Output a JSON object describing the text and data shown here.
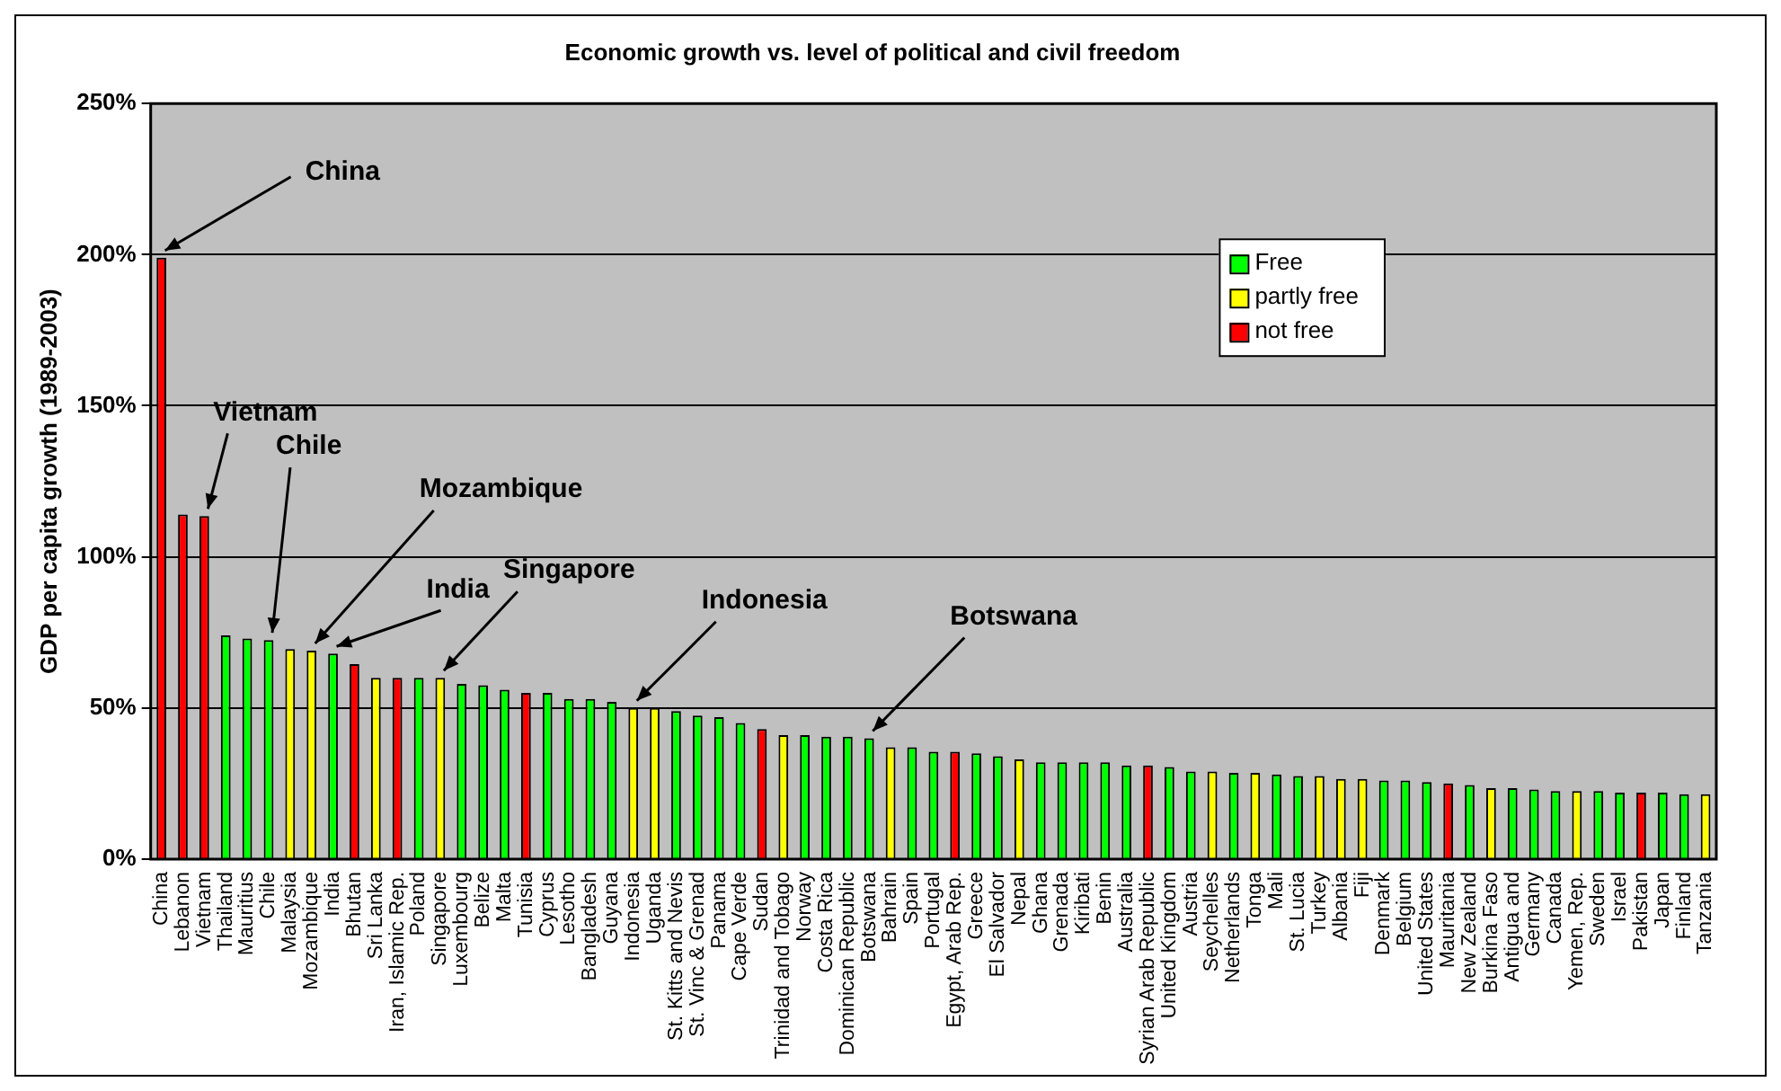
{
  "chart_data": {
    "type": "bar",
    "title": "Economic growth vs. level of political and civil freedom",
    "ylabel": "GDP per capita growth (1989-2003)",
    "categories": [
      "China",
      "Lebanon",
      "Vietnam",
      "Thailand",
      "Mauritius",
      "Chile",
      "Malaysia",
      "Mozambique",
      "India",
      "Bhutan",
      "Sri Lanka",
      "Iran, Islamic Rep.",
      "Poland",
      "Singapore",
      "Luxembourg",
      "Belize",
      "Malta",
      "Tunisia",
      "Cyprus",
      "Lesotho",
      "Bangladesh",
      "Guyana",
      "Indonesia",
      "Uganda",
      "St. Kitts and Nevis",
      "St. Vinc & Grenad",
      "Panama",
      "Cape Verde",
      "Sudan",
      "Trinidad and Tobago",
      "Norway",
      "Costa Rica",
      "Dominican Republic",
      "Botswana",
      "Bahrain",
      "Spain",
      "Portugal",
      "Egypt, Arab Rep.",
      "Greece",
      "El Salvador",
      "Nepal",
      "Ghana",
      "Grenada",
      "Kiribati",
      "Benin",
      "Australia",
      "Syrian Arab Republic",
      "United Kingdom",
      "Austria",
      "Seychelles",
      "Netherlands",
      "Tonga",
      "Mali",
      "St. Lucia",
      "Turkey",
      "Albania",
      "Fiji",
      "Denmark",
      "Belgium",
      "United States",
      "Mauritania",
      "New Zealand",
      "Burkina Faso",
      "Antigua and",
      "Germany",
      "Canada",
      "Yemen, Rep.",
      "Sweden",
      "Israel",
      "Pakistan",
      "Japan",
      "Finland",
      "Tanzania"
    ],
    "series": [
      {
        "name": "Free",
        "color": "#00ff00",
        "values": [
          null,
          null,
          null,
          74,
          73,
          72.5,
          null,
          null,
          68,
          null,
          null,
          null,
          60,
          null,
          58,
          57.5,
          56,
          null,
          55,
          53,
          53,
          52,
          null,
          null,
          49,
          47.5,
          47,
          45,
          null,
          null,
          41,
          40.5,
          40.5,
          40,
          null,
          37,
          35.5,
          null,
          35,
          34,
          null,
          32,
          32,
          32,
          32,
          31,
          null,
          30.5,
          29,
          null,
          28.5,
          null,
          28,
          27.5,
          null,
          null,
          null,
          26,
          26,
          25.5,
          null,
          24.5,
          null,
          23.5,
          23,
          22.5,
          null,
          22.5,
          22,
          null,
          22,
          21.5,
          null
        ]
      },
      {
        "name": "partly free",
        "color": "#ffff00",
        "values": [
          null,
          null,
          null,
          null,
          null,
          null,
          69.5,
          69,
          null,
          null,
          60,
          null,
          null,
          60,
          null,
          null,
          null,
          null,
          null,
          null,
          null,
          null,
          50,
          50,
          null,
          null,
          null,
          null,
          null,
          41,
          null,
          null,
          null,
          null,
          37,
          null,
          null,
          null,
          null,
          null,
          33,
          null,
          null,
          null,
          null,
          null,
          null,
          null,
          null,
          29,
          null,
          28.5,
          null,
          null,
          27.5,
          26.5,
          26.5,
          null,
          null,
          null,
          null,
          null,
          23.5,
          null,
          null,
          null,
          22.5,
          null,
          null,
          null,
          null,
          null,
          21.5
        ]
      },
      {
        "name": "not free",
        "color": "#ff0000",
        "values": [
          199,
          114,
          113.5,
          null,
          null,
          null,
          null,
          null,
          null,
          64.5,
          null,
          60,
          null,
          null,
          null,
          null,
          null,
          55,
          null,
          null,
          null,
          null,
          null,
          null,
          null,
          null,
          null,
          null,
          43,
          null,
          null,
          null,
          null,
          null,
          null,
          null,
          null,
          35.5,
          null,
          null,
          null,
          null,
          null,
          null,
          null,
          null,
          31,
          null,
          null,
          null,
          null,
          null,
          null,
          null,
          null,
          null,
          null,
          null,
          null,
          null,
          25,
          null,
          null,
          null,
          null,
          null,
          null,
          null,
          null,
          22,
          null,
          null,
          null
        ]
      }
    ],
    "ylim": [
      0,
      250
    ],
    "yticks": [
      {
        "value": 0,
        "label": "0%"
      },
      {
        "value": 50,
        "label": "50%"
      },
      {
        "value": 100,
        "label": "100%"
      },
      {
        "value": 150,
        "label": "150%"
      },
      {
        "value": 200,
        "label": "200%"
      },
      {
        "value": 250,
        "label": "250%"
      }
    ],
    "grid": "y",
    "legend": "top right",
    "annotations": [
      {
        "text": "China",
        "x": "China",
        "y": 199
      },
      {
        "text": "Vietnam",
        "x": "Vietnam",
        "y": 113.5
      },
      {
        "text": "Chile",
        "x": "Chile",
        "y": 72.5
      },
      {
        "text": "Mozambique",
        "x": "Mozambique",
        "y": 69
      },
      {
        "text": "India",
        "x": "India",
        "y": 68
      },
      {
        "text": "Singapore",
        "x": "Singapore",
        "y": 60
      },
      {
        "text": "Indonesia",
        "x": "Indonesia",
        "y": 50
      },
      {
        "text": "Botswana",
        "x": "Botswana",
        "y": 40
      }
    ]
  }
}
